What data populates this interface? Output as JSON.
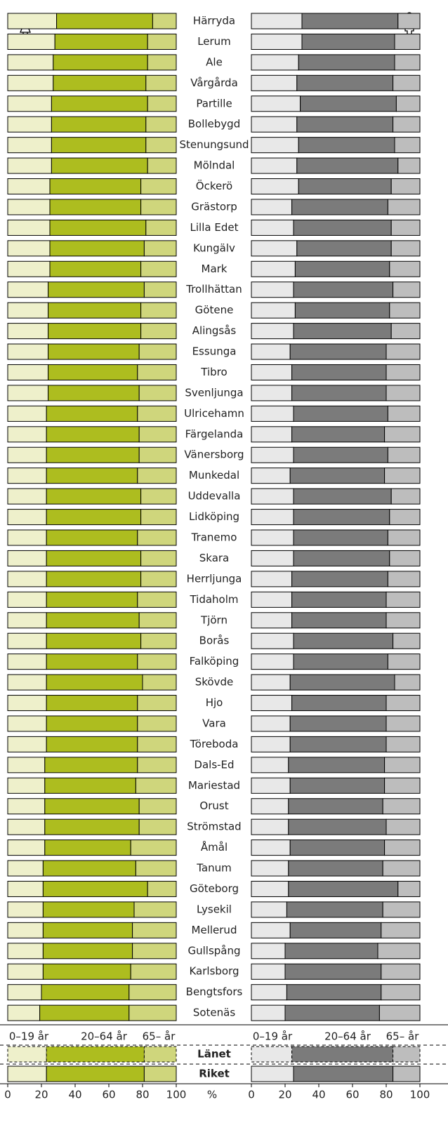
{
  "chart_data": {
    "type": "bar",
    "stacked": true,
    "orientation": "horizontal",
    "categories": [
      "Härryda",
      "Lerum",
      "Ale",
      "Vårgårda",
      "Partille",
      "Bollebygd",
      "Stenungsund",
      "Mölndal",
      "Öckerö",
      "Grästorp",
      "Lilla Edet",
      "Kungälv",
      "Mark",
      "Trollhättan",
      "Götene",
      "Alingsås",
      "Essunga",
      "Tibro",
      "Svenljunga",
      "Ulricehamn",
      "Färgelanda",
      "Vänersborg",
      "Munkedal",
      "Uddevalla",
      "Lidköping",
      "Tranemo",
      "Skara",
      "Herrljunga",
      "Tidaholm",
      "Tjörn",
      "Borås",
      "Falköping",
      "Skövde",
      "Hjo",
      "Vara",
      "Töreboda",
      "Dals-Ed",
      "Mariestad",
      "Orust",
      "Strömstad",
      "Åmål",
      "Tanum",
      "Göteborg",
      "Lysekil",
      "Mellerud",
      "Gullspång",
      "Karlsborg",
      "Bengtsfors",
      "Sotenäs",
      "Länet",
      "Riket"
    ],
    "xlim": [
      0,
      100
    ],
    "xticks": [
      0,
      20,
      40,
      60,
      80,
      100
    ],
    "x_unit": "%",
    "panels": [
      {
        "series": [
          {
            "name": "0–19 år",
            "color": "#eef0cb",
            "values": [
              29,
              28,
              27,
              27,
              26,
              26,
              26,
              26,
              25,
              25,
              25,
              25,
              25,
              24,
              24,
              24,
              24,
              24,
              24,
              23,
              23,
              23,
              23,
              23,
              23,
              23,
              23,
              23,
              23,
              23,
              23,
              23,
              23,
              23,
              23,
              23,
              22,
              22,
              22,
              22,
              22,
              21,
              21,
              21,
              21,
              21,
              21,
              20,
              19,
              23,
              23
            ]
          },
          {
            "name": "20–64 år",
            "color": "#adbd1f",
            "values": [
              57,
              55,
              56,
              55,
              57,
              56,
              56,
              57,
              54,
              54,
              57,
              56,
              54,
              57,
              55,
              55,
              54,
              53,
              54,
              54,
              55,
              55,
              54,
              56,
              56,
              54,
              56,
              56,
              54,
              55,
              56,
              54,
              57,
              54,
              54,
              54,
              55,
              54,
              56,
              56,
              51,
              55,
              62,
              54,
              53,
              53,
              52,
              52,
              53,
              58,
              58
            ]
          },
          {
            "name": "65– år",
            "color": "#cfd67c",
            "values": [
              14,
              17,
              17,
              18,
              17,
              18,
              18,
              17,
              21,
              21,
              18,
              19,
              21,
              19,
              21,
              21,
              22,
              23,
              22,
              23,
              22,
              22,
              23,
              21,
              21,
              23,
              21,
              21,
              23,
              22,
              21,
              23,
              20,
              23,
              23,
              23,
              23,
              24,
              22,
              22,
              27,
              24,
              17,
              25,
              26,
              26,
              27,
              28,
              28,
              19,
              19
            ]
          }
        ]
      },
      {
        "series": [
          {
            "name": "0–19 år",
            "color": "#e8e8e8",
            "values": [
              30,
              30,
              28,
              27,
              29,
              27,
              28,
              27,
              28,
              24,
              25,
              27,
              26,
              25,
              26,
              25,
              23,
              24,
              24,
              25,
              24,
              25,
              23,
              25,
              25,
              25,
              25,
              24,
              24,
              24,
              25,
              25,
              23,
              24,
              23,
              23,
              22,
              23,
              22,
              22,
              23,
              22,
              22,
              21,
              23,
              20,
              20,
              21,
              20,
              24,
              25
            ]
          },
          {
            "name": "20–64 år",
            "color": "#7b7b7b",
            "values": [
              57,
              55,
              57,
              57,
              57,
              57,
              57,
              60,
              55,
              57,
              58,
              56,
              56,
              59,
              56,
              58,
              57,
              56,
              56,
              56,
              55,
              56,
              56,
              58,
              57,
              56,
              57,
              57,
              56,
              56,
              59,
              56,
              62,
              56,
              57,
              57,
              57,
              56,
              56,
              58,
              56,
              56,
              65,
              57,
              54,
              55,
              57,
              56,
              56,
              60,
              59
            ]
          },
          {
            "name": "65– år",
            "color": "#bdbdbd",
            "values": [
              13,
              15,
              15,
              16,
              14,
              16,
              15,
              13,
              17,
              19,
              17,
              17,
              18,
              16,
              18,
              17,
              20,
              20,
              20,
              19,
              21,
              19,
              21,
              17,
              18,
              19,
              18,
              19,
              20,
              20,
              16,
              19,
              15,
              20,
              20,
              20,
              21,
              21,
              22,
              20,
              21,
              22,
              13,
              22,
              23,
              25,
              23,
              23,
              24,
              16,
              16
            ]
          }
        ]
      }
    ]
  }
}
